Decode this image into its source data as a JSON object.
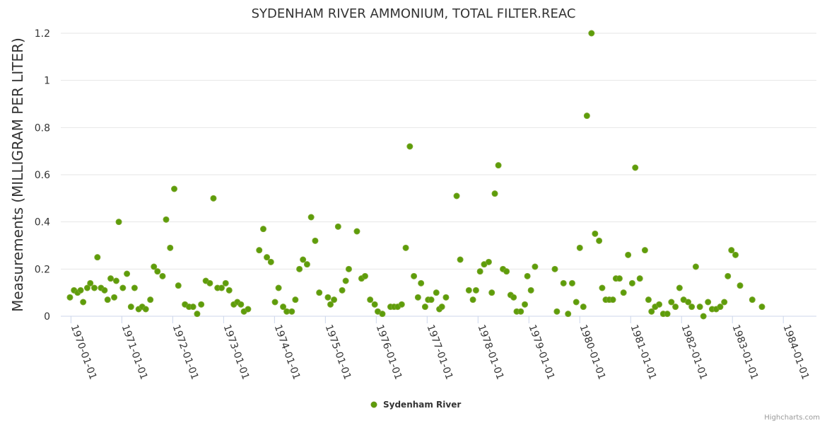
{
  "chart_data": {
    "type": "scatter",
    "title": "SYDENHAM RIVER AMMONIUM, TOTAL FILTER.REAC",
    "ylabel": "Measurements (MILLIGRAM PER LITER)",
    "xlabel": "",
    "ylim": [
      0,
      1.2
    ],
    "yticks": [
      0,
      0.2,
      0.4,
      0.6,
      0.8,
      1,
      1.2
    ],
    "ytick_labels": [
      "0",
      "0.2",
      "0.4",
      "0.6",
      "0.8",
      "1",
      "1.2"
    ],
    "xlim": [
      1969.8,
      1984.65
    ],
    "xticks": [
      1970,
      1971,
      1972,
      1973,
      1974,
      1975,
      1976,
      1977,
      1978,
      1979,
      1980,
      1981,
      1982,
      1983,
      1984
    ],
    "xtick_labels": [
      "1970-01-01",
      "1971-01-01",
      "1972-01-01",
      "1973-01-01",
      "1974-01-01",
      "1975-01-01",
      "1976-01-01",
      "1977-01-01",
      "1978-01-01",
      "1979-01-01",
      "1980-01-01",
      "1981-01-01",
      "1982-01-01",
      "1983-01-01",
      "1984-01-01"
    ],
    "legend": "bottom-center",
    "grid": true,
    "color": "#5d9d0a",
    "series": [
      {
        "name": "Sydenham River",
        "points": [
          [
            1969.98,
            0.08
          ],
          [
            1970.06,
            0.11
          ],
          [
            1970.13,
            0.1
          ],
          [
            1970.19,
            0.11
          ],
          [
            1970.24,
            0.06
          ],
          [
            1970.32,
            0.12
          ],
          [
            1970.38,
            0.14
          ],
          [
            1970.46,
            0.12
          ],
          [
            1970.52,
            0.25
          ],
          [
            1970.59,
            0.12
          ],
          [
            1970.66,
            0.11
          ],
          [
            1970.72,
            0.07
          ],
          [
            1970.78,
            0.16
          ],
          [
            1970.85,
            0.08
          ],
          [
            1970.89,
            0.15
          ],
          [
            1970.94,
            0.4
          ],
          [
            1971.02,
            0.12
          ],
          [
            1971.1,
            0.18
          ],
          [
            1971.18,
            0.04
          ],
          [
            1971.25,
            0.12
          ],
          [
            1971.33,
            0.03
          ],
          [
            1971.4,
            0.04
          ],
          [
            1971.47,
            0.03
          ],
          [
            1971.56,
            0.07
          ],
          [
            1971.63,
            0.21
          ],
          [
            1971.7,
            0.19
          ],
          [
            1971.8,
            0.17
          ],
          [
            1971.87,
            0.41
          ],
          [
            1971.95,
            0.29
          ],
          [
            1972.03,
            0.54
          ],
          [
            1972.11,
            0.13
          ],
          [
            1972.24,
            0.05
          ],
          [
            1972.32,
            0.04
          ],
          [
            1972.4,
            0.04
          ],
          [
            1972.48,
            0.01
          ],
          [
            1972.56,
            0.05
          ],
          [
            1972.65,
            0.15
          ],
          [
            1972.73,
            0.14
          ],
          [
            1972.8,
            0.5
          ],
          [
            1972.88,
            0.12
          ],
          [
            1972.96,
            0.12
          ],
          [
            1973.04,
            0.14
          ],
          [
            1973.11,
            0.11
          ],
          [
            1973.2,
            0.05
          ],
          [
            1973.27,
            0.06
          ],
          [
            1973.34,
            0.05
          ],
          [
            1973.4,
            0.02
          ],
          [
            1973.48,
            0.03
          ],
          [
            1973.7,
            0.28
          ],
          [
            1973.78,
            0.37
          ],
          [
            1973.85,
            0.25
          ],
          [
            1973.93,
            0.23
          ],
          [
            1974.01,
            0.06
          ],
          [
            1974.08,
            0.12
          ],
          [
            1974.17,
            0.04
          ],
          [
            1974.24,
            0.02
          ],
          [
            1974.34,
            0.02
          ],
          [
            1974.41,
            0.07
          ],
          [
            1974.49,
            0.2
          ],
          [
            1974.56,
            0.24
          ],
          [
            1974.64,
            0.22
          ],
          [
            1974.72,
            0.42
          ],
          [
            1974.8,
            0.32
          ],
          [
            1974.88,
            0.1
          ],
          [
            1975.05,
            0.08
          ],
          [
            1975.1,
            0.05
          ],
          [
            1975.17,
            0.07
          ],
          [
            1975.25,
            0.38
          ],
          [
            1975.33,
            0.11
          ],
          [
            1975.4,
            0.15
          ],
          [
            1975.46,
            0.2
          ],
          [
            1975.62,
            0.36
          ],
          [
            1975.71,
            0.16
          ],
          [
            1975.78,
            0.17
          ],
          [
            1975.88,
            0.07
          ],
          [
            1975.97,
            0.05
          ],
          [
            1976.03,
            0.02
          ],
          [
            1976.12,
            0.01
          ],
          [
            1976.28,
            0.04
          ],
          [
            1976.35,
            0.04
          ],
          [
            1976.42,
            0.04
          ],
          [
            1976.5,
            0.05
          ],
          [
            1976.58,
            0.29
          ],
          [
            1976.66,
            0.72
          ],
          [
            1976.74,
            0.17
          ],
          [
            1976.82,
            0.08
          ],
          [
            1976.88,
            0.14
          ],
          [
            1976.96,
            0.04
          ],
          [
            1977.02,
            0.07
          ],
          [
            1977.08,
            0.07
          ],
          [
            1977.18,
            0.1
          ],
          [
            1977.24,
            0.03
          ],
          [
            1977.29,
            0.04
          ],
          [
            1977.37,
            0.08
          ],
          [
            1977.58,
            0.51
          ],
          [
            1977.65,
            0.24
          ],
          [
            1977.82,
            0.11
          ],
          [
            1977.9,
            0.07
          ],
          [
            1977.96,
            0.11
          ],
          [
            1978.04,
            0.19
          ],
          [
            1978.12,
            0.22
          ],
          [
            1978.21,
            0.23
          ],
          [
            1978.27,
            0.1
          ],
          [
            1978.33,
            0.52
          ],
          [
            1978.4,
            0.64
          ],
          [
            1978.49,
            0.2
          ],
          [
            1978.56,
            0.19
          ],
          [
            1978.64,
            0.09
          ],
          [
            1978.7,
            0.08
          ],
          [
            1978.76,
            0.02
          ],
          [
            1978.84,
            0.02
          ],
          [
            1978.92,
            0.05
          ],
          [
            1978.97,
            0.17
          ],
          [
            1979.04,
            0.11
          ],
          [
            1979.12,
            0.21
          ],
          [
            1979.51,
            0.2
          ],
          [
            1979.55,
            0.02
          ],
          [
            1979.68,
            0.14
          ],
          [
            1979.77,
            0.01
          ],
          [
            1979.85,
            0.14
          ],
          [
            1979.93,
            0.06
          ],
          [
            1980.0,
            0.29
          ],
          [
            1980.07,
            0.04
          ],
          [
            1980.14,
            0.85
          ],
          [
            1980.23,
            1.2
          ],
          [
            1980.3,
            0.35
          ],
          [
            1980.38,
            0.32
          ],
          [
            1980.44,
            0.12
          ],
          [
            1980.51,
            0.07
          ],
          [
            1980.58,
            0.07
          ],
          [
            1980.65,
            0.07
          ],
          [
            1980.71,
            0.16
          ],
          [
            1980.78,
            0.16
          ],
          [
            1980.86,
            0.1
          ],
          [
            1980.95,
            0.26
          ],
          [
            1981.03,
            0.14
          ],
          [
            1981.09,
            0.63
          ],
          [
            1981.18,
            0.16
          ],
          [
            1981.28,
            0.28
          ],
          [
            1981.35,
            0.07
          ],
          [
            1981.41,
            0.02
          ],
          [
            1981.48,
            0.04
          ],
          [
            1981.56,
            0.05
          ],
          [
            1981.64,
            0.01
          ],
          [
            1981.72,
            0.01
          ],
          [
            1981.8,
            0.06
          ],
          [
            1981.88,
            0.04
          ],
          [
            1981.96,
            0.12
          ],
          [
            1982.04,
            0.07
          ],
          [
            1982.13,
            0.06
          ],
          [
            1982.2,
            0.04
          ],
          [
            1982.28,
            0.21
          ],
          [
            1982.36,
            0.04
          ],
          [
            1982.43,
            0.0
          ],
          [
            1982.52,
            0.06
          ],
          [
            1982.6,
            0.03
          ],
          [
            1982.68,
            0.03
          ],
          [
            1982.76,
            0.04
          ],
          [
            1982.84,
            0.06
          ],
          [
            1982.91,
            0.17
          ],
          [
            1982.98,
            0.28
          ],
          [
            1983.06,
            0.26
          ],
          [
            1983.15,
            0.13
          ],
          [
            1983.39,
            0.07
          ],
          [
            1983.58,
            0.04
          ]
        ]
      }
    ]
  },
  "legend": {
    "label": "Sydenham River"
  },
  "credits": "Highcharts.com"
}
